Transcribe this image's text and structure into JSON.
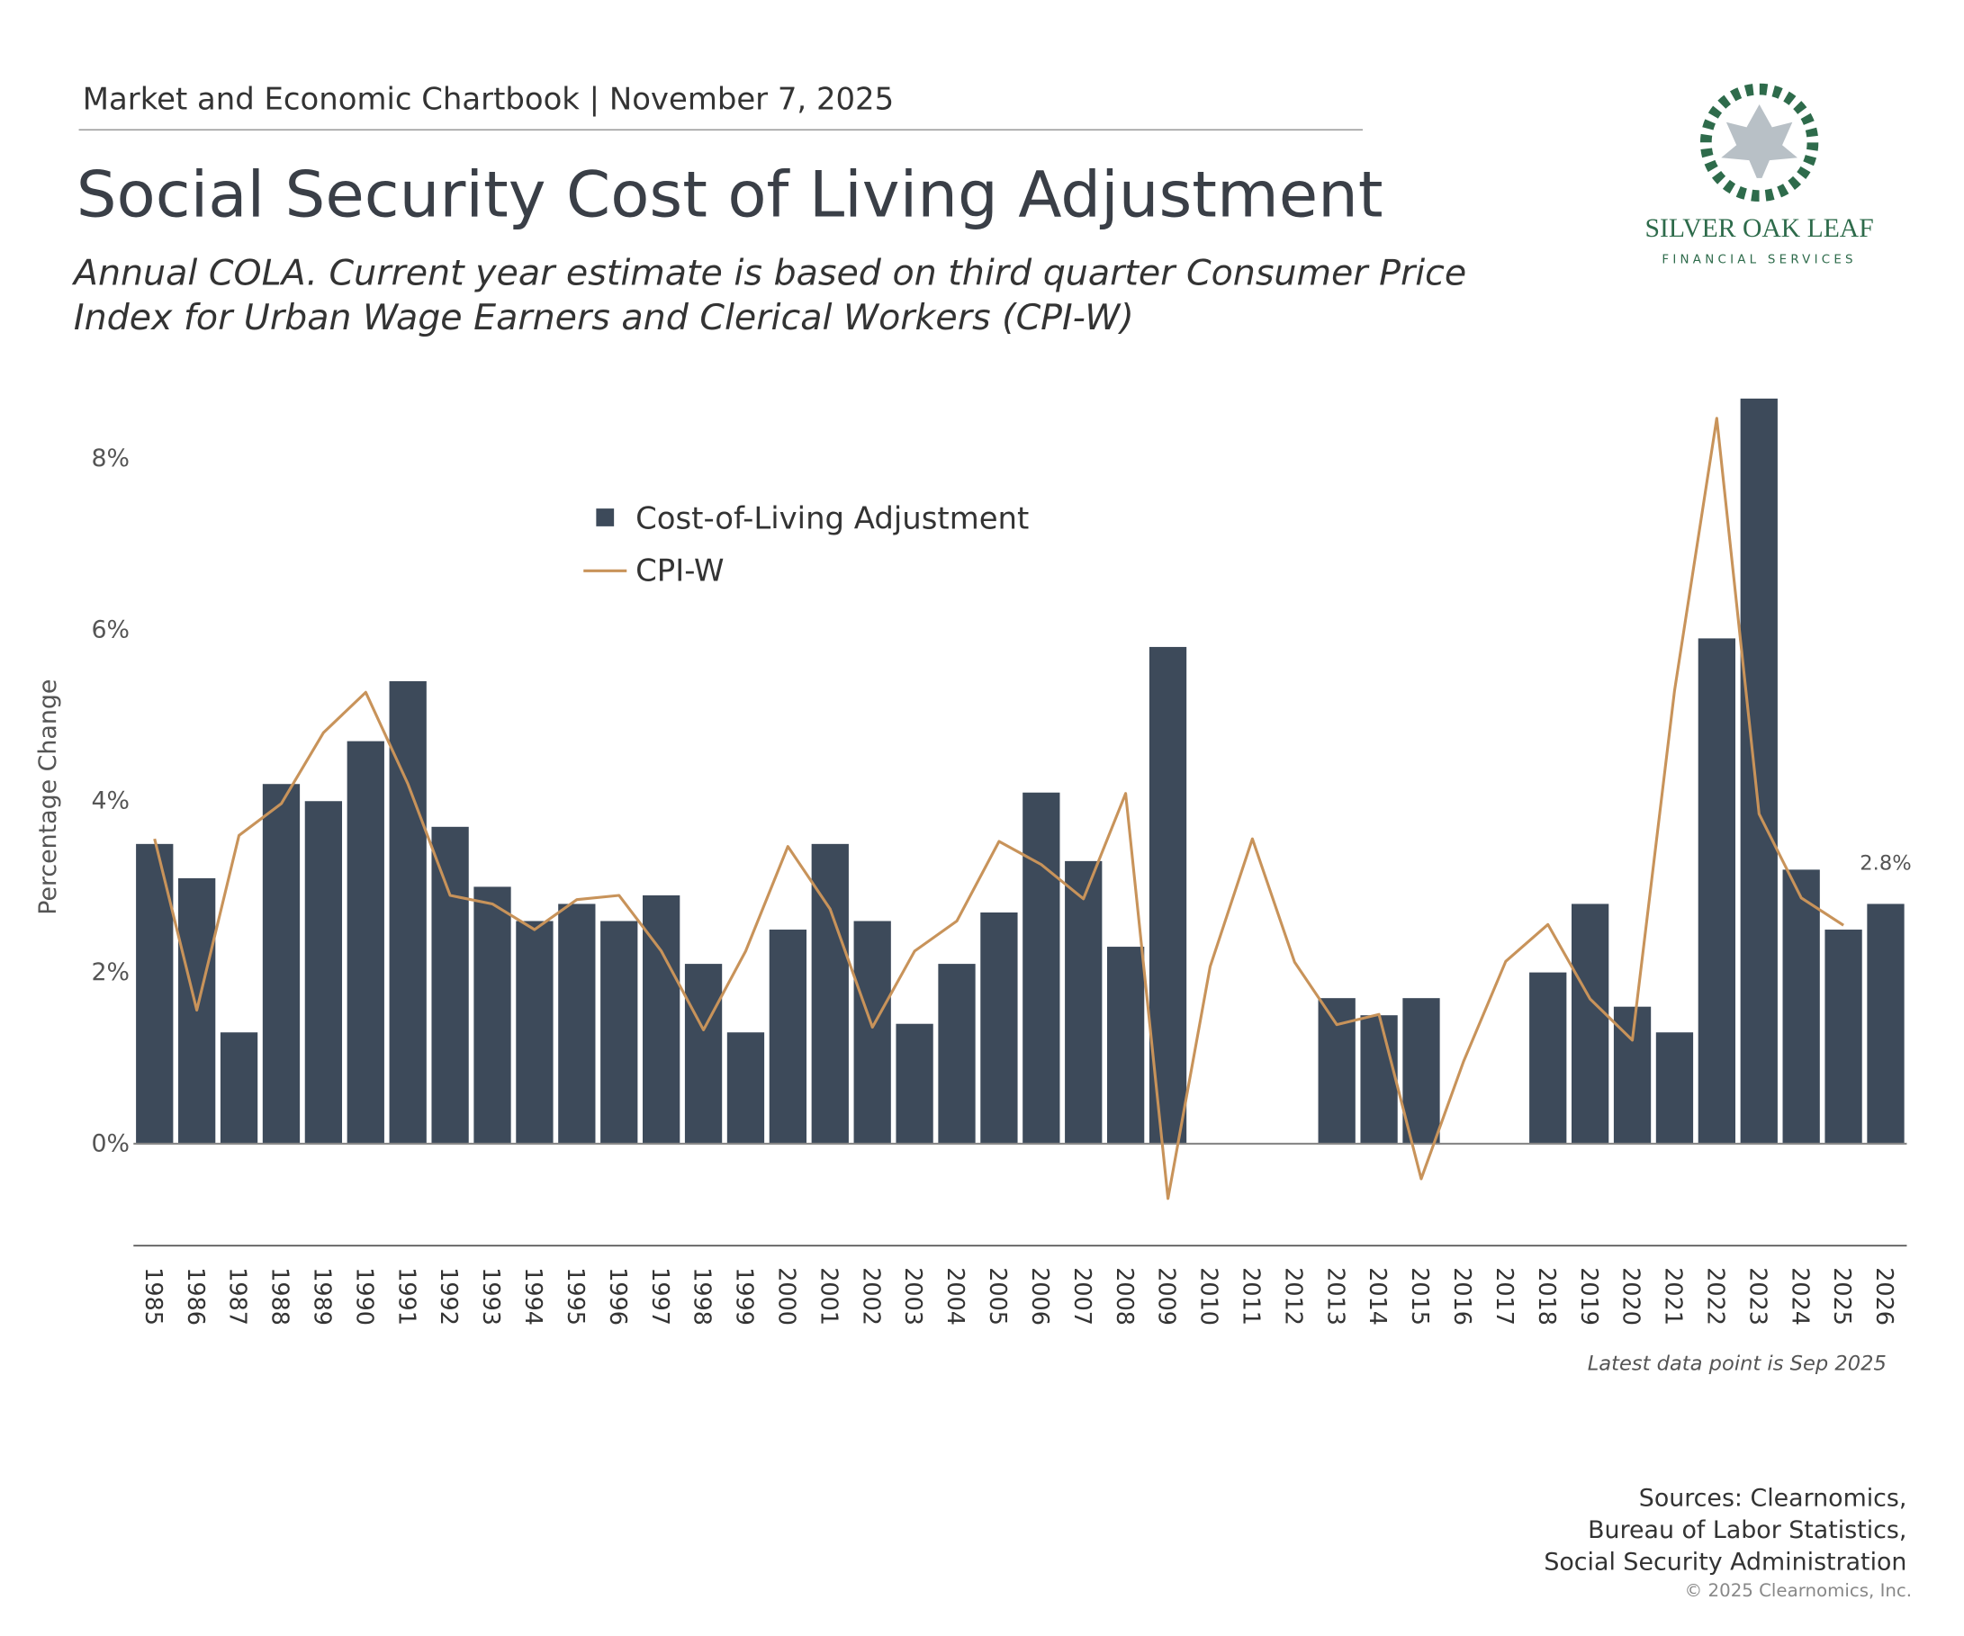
{
  "header": {
    "kicker": "Market and Economic Chartbook | November 7, 2025",
    "logo_name": "SILVER OAK LEAF",
    "logo_tagline": "FINANCIAL SERVICES"
  },
  "chart_data": {
    "type": "bar",
    "title": "Social Security Cost of Living Adjustment",
    "subtitle": [
      "Annual COLA. Current year estimate is based on third quarter Consumer Price",
      "Index for Urban Wage Earners and Clerical Workers (CPI-W)"
    ],
    "y_label": "Percentage Change",
    "categories": [
      "1985",
      "1986",
      "1987",
      "1988",
      "1989",
      "1990",
      "1991",
      "1992",
      "1993",
      "1994",
      "1995",
      "1996",
      "1997",
      "1998",
      "1999",
      "2000",
      "2001",
      "2002",
      "2003",
      "2004",
      "2005",
      "2006",
      "2007",
      "2008",
      "2009",
      "2010",
      "2011",
      "2012",
      "2013",
      "2014",
      "2015",
      "2016",
      "2017",
      "2018",
      "2019",
      "2020",
      "2021",
      "2022",
      "2023",
      "2024",
      "2025",
      "2026"
    ],
    "series": [
      {
        "name": "Cost-of-Living Adjustment",
        "type": "bar",
        "color": "#3d4a5a",
        "values": [
          3.5,
          3.1,
          1.3,
          4.2,
          4.0,
          4.7,
          5.4,
          3.7,
          3.0,
          2.6,
          2.8,
          2.6,
          2.9,
          2.1,
          1.3,
          2.5,
          3.5,
          2.6,
          1.4,
          2.1,
          2.7,
          4.1,
          3.3,
          2.3,
          5.8,
          0,
          0,
          0,
          1.7,
          1.5,
          1.7,
          0,
          0,
          2.0,
          2.8,
          1.6,
          1.3,
          5.9,
          8.7,
          3.2,
          2.5,
          2.8
        ],
        "value_labels": [
          null,
          null,
          null,
          null,
          null,
          null,
          null,
          null,
          null,
          null,
          null,
          null,
          null,
          null,
          null,
          null,
          null,
          null,
          null,
          null,
          null,
          null,
          null,
          null,
          null,
          null,
          null,
          null,
          null,
          null,
          null,
          null,
          null,
          null,
          null,
          null,
          null,
          null,
          null,
          null,
          null,
          "2.8%"
        ]
      },
      {
        "name": "CPI-W",
        "type": "line",
        "color": "#c8935a",
        "values": [
          3.56,
          1.56,
          3.6,
          3.97,
          4.8,
          5.27,
          4.2,
          2.9,
          2.8,
          2.5,
          2.85,
          2.9,
          2.25,
          1.33,
          2.25,
          3.47,
          2.74,
          1.36,
          2.25,
          2.6,
          3.53,
          3.26,
          2.86,
          4.09,
          -0.64,
          2.07,
          3.56,
          2.12,
          1.39,
          1.51,
          -0.41,
          0.96,
          2.13,
          2.56,
          1.69,
          1.21,
          5.29,
          8.47,
          3.85,
          2.87,
          2.55,
          null
        ]
      }
    ],
    "ylim": [
      -1.19,
      8.9
    ],
    "yticks": [
      {
        "value": 0,
        "label": "0%"
      },
      {
        "value": 2,
        "label": "2%"
      },
      {
        "value": 4,
        "label": "4%"
      },
      {
        "value": 6,
        "label": "6%"
      },
      {
        "value": 8,
        "label": "8%"
      }
    ],
    "note": "Latest data point is Sep 2025",
    "sources": [
      "Sources: Clearnomics,",
      "Bureau of Labor Statistics,",
      "Social Security Administration"
    ],
    "copyright": "© 2025 Clearnomics, Inc."
  }
}
